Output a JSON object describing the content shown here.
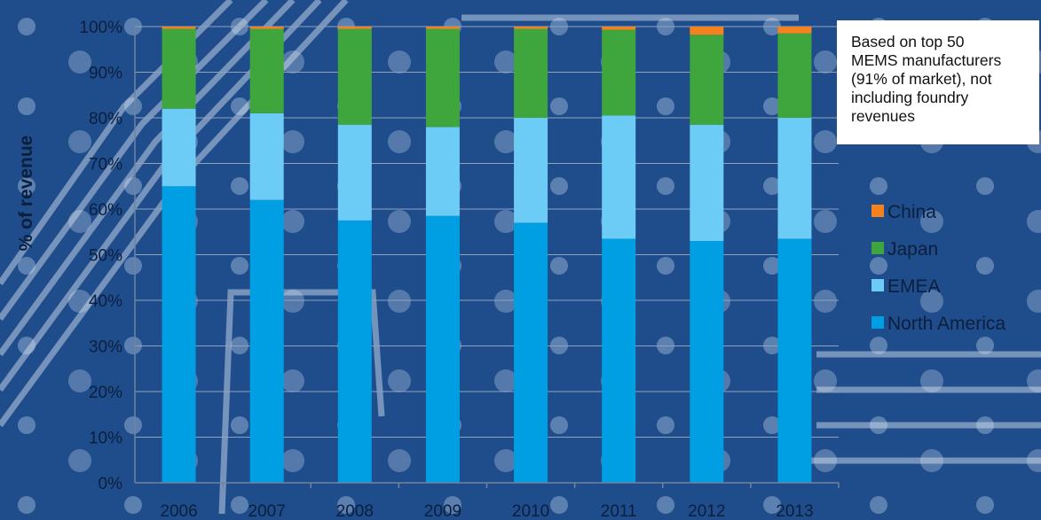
{
  "colors": {
    "background": "#1f4d8c",
    "north_america": "#009fe3",
    "emea": "#6cccf5",
    "japan": "#3ea63c",
    "china": "#f4821f"
  },
  "note": "Based on top 50\nMEMS manufacturers\n(91% of market), not\nincluding foundry\nrevenues",
  "chart_data": {
    "type": "bar",
    "stacked": true,
    "title": "",
    "xlabel": "",
    "ylabel": "% of revenue",
    "ylim": [
      0,
      100
    ],
    "yticks": [
      "0%",
      "10%",
      "20%",
      "30%",
      "40%",
      "50%",
      "60%",
      "70%",
      "80%",
      "90%",
      "100%"
    ],
    "categories": [
      "2006",
      "2007",
      "2008",
      "2009",
      "2010",
      "2011",
      "2012",
      "2013"
    ],
    "series": [
      {
        "name": "North America",
        "color": "#009fe3",
        "values": [
          65,
          62,
          57.5,
          58.5,
          57,
          53.5,
          53,
          53.5
        ]
      },
      {
        "name": "EMEA",
        "color": "#6cccf5",
        "values": [
          17,
          19,
          21,
          19.5,
          23,
          27,
          25.5,
          26.5
        ]
      },
      {
        "name": "Japan",
        "color": "#3ea63c",
        "values": [
          17.5,
          18.5,
          21,
          21.5,
          19.5,
          18.8,
          19.7,
          18.5
        ]
      },
      {
        "name": "China",
        "color": "#f4821f",
        "values": [
          0.5,
          0.5,
          0.5,
          0.5,
          0.5,
          0.7,
          1.8,
          1.5
        ]
      }
    ],
    "legend": [
      "China",
      "Japan",
      "EMEA",
      "North America"
    ],
    "legend_position": "right",
    "grid": true
  }
}
